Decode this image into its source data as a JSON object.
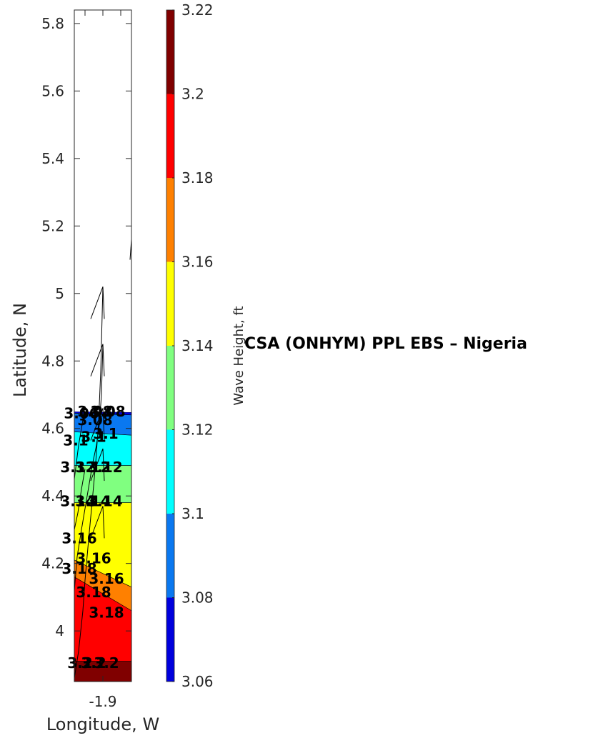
{
  "chart_data": {
    "type": "contour",
    "xlabel": "Longitude, W",
    "ylabel": "Latitude, N",
    "side_title": "CSA (ONHYM) PPL EBS  – Nigeria",
    "xlim": [
      -1.94,
      -1.86
    ],
    "ylim": [
      3.85,
      5.84
    ],
    "x_ticks": [
      -1.9
    ],
    "x_tick_labels": [
      "-1.9"
    ],
    "y_ticks": [
      4.0,
      4.2,
      4.4,
      4.6,
      4.8,
      5.0,
      5.2,
      5.4,
      5.6,
      5.8
    ],
    "y_tick_labels": [
      "4",
      "4.2",
      "4.4",
      "4.6",
      "4.8",
      "5",
      "5.2",
      "5.4",
      "5.6",
      "5.8"
    ],
    "colorbar": {
      "label": "Wave Height, ft",
      "range": [
        3.06,
        3.22
      ],
      "tick_values": [
        3.06,
        3.08,
        3.1,
        3.12,
        3.14,
        3.16,
        3.18,
        3.2,
        3.22
      ],
      "tick_labels": [
        "3.06",
        "3.08",
        "3.1",
        "3.12",
        "3.14",
        "3.16",
        "3.18",
        "3.2",
        "3.22"
      ],
      "colors": [
        "#0000dd",
        "#0a78f0",
        "#00ffff",
        "#80ff80",
        "#ffff00",
        "#ff8000",
        "#ff0000",
        "#800000"
      ]
    },
    "bands": [
      {
        "from": 3.06,
        "to": 3.08,
        "color": "#0000dd",
        "top": [
          4.65,
          4.648
        ],
        "bottom": [
          4.645,
          4.64
        ]
      },
      {
        "from": 3.08,
        "to": 3.1,
        "color": "#0a78f0",
        "top": [
          4.645,
          4.64
        ],
        "bottom": [
          4.59,
          4.58
        ]
      },
      {
        "from": 3.1,
        "to": 3.12,
        "color": "#00ffff",
        "top": [
          4.59,
          4.58
        ],
        "bottom": [
          4.49,
          4.49
        ]
      },
      {
        "from": 3.12,
        "to": 3.14,
        "color": "#80ff80",
        "top": [
          4.49,
          4.49
        ],
        "bottom": [
          4.38,
          4.38
        ]
      },
      {
        "from": 3.14,
        "to": 3.16,
        "color": "#ffff00",
        "top": [
          4.38,
          4.38
        ],
        "bottom": [
          4.21,
          4.13
        ]
      },
      {
        "from": 3.16,
        "to": 3.18,
        "color": "#ff8000",
        "top": [
          4.21,
          4.13
        ],
        "bottom": [
          4.16,
          4.06
        ]
      },
      {
        "from": 3.18,
        "to": 3.2,
        "color": "#ff0000",
        "top": [
          4.16,
          4.06
        ],
        "bottom": [
          3.91,
          3.91
        ]
      },
      {
        "from": 3.2,
        "to": 3.22,
        "color": "#800000",
        "top": [
          3.91,
          3.91
        ],
        "bottom": [
          3.85,
          3.85
        ]
      }
    ],
    "contour_labels": [
      {
        "text": "3.06",
        "lon": -1.93,
        "lat": 4.63
      },
      {
        "text": "3.08",
        "lon": -1.911,
        "lat": 4.635
      },
      {
        "text": "3.08",
        "lon": -1.893,
        "lat": 4.635
      },
      {
        "text": "3.08",
        "lon": -1.911,
        "lat": 4.61
      },
      {
        "text": "3.1",
        "lon": -1.938,
        "lat": 4.55
      },
      {
        "text": "3.1",
        "lon": -1.913,
        "lat": 4.56
      },
      {
        "text": "3.1",
        "lon": -1.896,
        "lat": 4.57
      },
      {
        "text": "3.12",
        "lon": -1.935,
        "lat": 4.47
      },
      {
        "text": "3.12",
        "lon": -1.914,
        "lat": 4.47
      },
      {
        "text": "3.12",
        "lon": -1.897,
        "lat": 4.47
      },
      {
        "text": "3.14",
        "lon": -1.935,
        "lat": 4.37
      },
      {
        "text": "3.14",
        "lon": -1.914,
        "lat": 4.37
      },
      {
        "text": "3.14",
        "lon": -1.897,
        "lat": 4.37
      },
      {
        "text": "3.16",
        "lon": -1.933,
        "lat": 4.26
      },
      {
        "text": "3.16",
        "lon": -1.913,
        "lat": 4.2
      },
      {
        "text": "3.16",
        "lon": -1.895,
        "lat": 4.14
      },
      {
        "text": "3.18",
        "lon": -1.933,
        "lat": 4.17
      },
      {
        "text": "3.18",
        "lon": -1.913,
        "lat": 4.1
      },
      {
        "text": "3.18",
        "lon": -1.895,
        "lat": 4.04
      },
      {
        "text": "3.2",
        "lon": -1.932,
        "lat": 3.89
      },
      {
        "text": "3.2",
        "lon": -1.913,
        "lat": 3.89
      },
      {
        "text": "3.2",
        "lon": -1.895,
        "lat": 3.89
      }
    ],
    "vectors": [
      {
        "x": [
          -1.94,
          -1.934,
          -1.928,
          -1.925,
          -1.92,
          -1.916,
          -1.91,
          -1.906,
          -1.903,
          -1.9
        ],
        "y": [
          3.86,
          3.94,
          4.06,
          4.15,
          4.27,
          4.36,
          4.5,
          4.62,
          4.77,
          5.02
        ]
      },
      {
        "x": [
          -1.94,
          -1.936,
          -1.93,
          -1.926,
          -1.922,
          -1.918,
          -1.914,
          -1.909,
          -1.905,
          -1.902,
          -1.9
        ],
        "y": [
          4.12,
          4.22,
          4.3,
          4.35,
          4.4,
          4.45,
          4.5,
          4.55,
          4.61,
          4.7,
          4.85
        ]
      },
      {
        "x": [
          -1.94,
          -1.937,
          -1.934,
          -1.93,
          -1.926
        ],
        "y": [
          4.45,
          4.5,
          4.55,
          4.6,
          4.65
        ]
      },
      {
        "x": [
          -1.94,
          -1.935,
          -1.93,
          -1.925
        ],
        "y": [
          4.3,
          4.35,
          4.42,
          4.48
        ]
      }
    ],
    "arrow_heads": [
      {
        "tip_lon": -1.9,
        "tip_lat": 5.02
      },
      {
        "tip_lon": -1.9,
        "tip_lat": 4.85
      },
      {
        "tip_lon": -1.9,
        "tip_lat": 4.66
      },
      {
        "tip_lon": -1.9,
        "tip_lat": 4.54
      },
      {
        "tip_lon": -1.9,
        "tip_lat": 4.37
      }
    ],
    "edge_line": {
      "lon": [
        -1.862,
        -1.86
      ],
      "lat": [
        5.1,
        5.16
      ]
    }
  }
}
